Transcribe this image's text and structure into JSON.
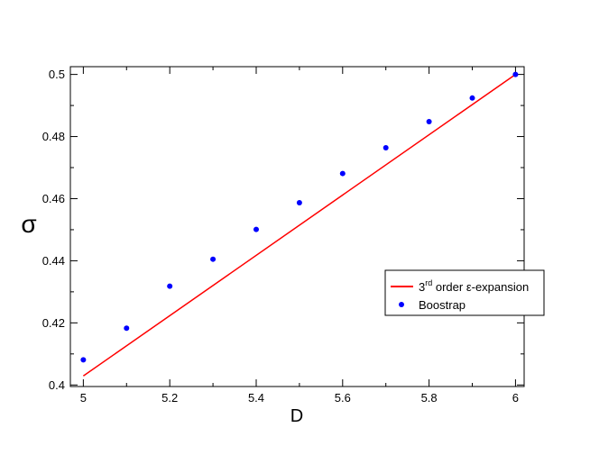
{
  "chart_data": {
    "type": "scatter",
    "title": "",
    "xlabel": "D",
    "ylabel": "σ",
    "xlim": [
      4.97,
      6.02
    ],
    "ylim": [
      0.3995,
      0.5025
    ],
    "xticks": [
      5,
      5.2,
      5.4,
      5.6,
      5.8,
      6
    ],
    "xtick_labels": [
      "5",
      "5.2",
      "5.4",
      "5.6",
      "5.8",
      "6"
    ],
    "yticks": [
      0.4,
      0.42,
      0.44,
      0.46,
      0.48,
      0.5
    ],
    "ytick_labels": [
      "0.4",
      "0.42",
      "0.44",
      "0.46",
      "0.48",
      "0.5"
    ],
    "grid": false,
    "legend": {
      "placement": "right"
    },
    "series": [
      {
        "name": "3rd order ε-expansion",
        "legend_base": "3",
        "legend_sup": "rd",
        "legend_rest": " order ε-expansion",
        "kind": "line",
        "color": "#ff0000",
        "x": [
          5,
          6
        ],
        "y": [
          0.4029,
          0.5
        ]
      },
      {
        "name": "Boostrap",
        "kind": "scatter",
        "color": "#0000ff",
        "x": [
          5.0,
          5.1,
          5.2,
          5.3,
          5.4,
          5.5,
          5.6,
          5.7,
          5.8,
          5.9,
          6.0
        ],
        "y": [
          0.4081,
          0.4183,
          0.4318,
          0.4405,
          0.4501,
          0.4587,
          0.4681,
          0.4764,
          0.4848,
          0.4924,
          0.5
        ]
      }
    ]
  }
}
